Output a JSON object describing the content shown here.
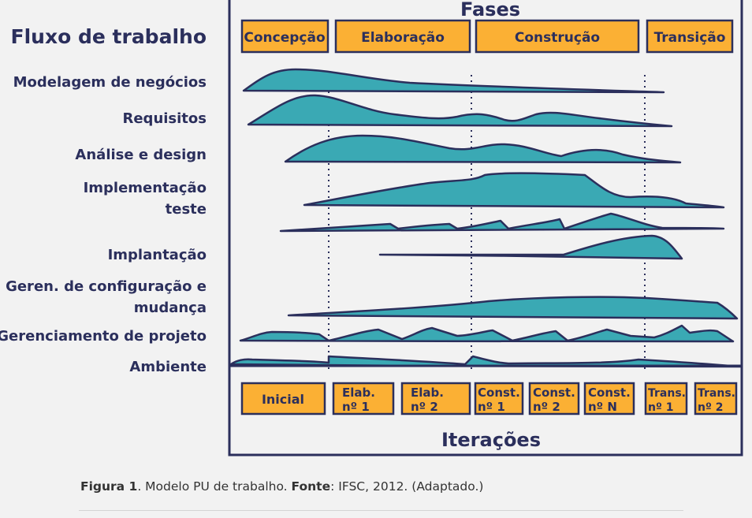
{
  "diagram": {
    "phases_title": "Fases",
    "workflow_title": "Fluxo de trabalho",
    "iterations_title": "Iterações",
    "phases": [
      "Concepção",
      "Elaboração",
      "Construção",
      "Transição"
    ],
    "workflows": [
      [
        "Modelagem de negócios"
      ],
      [
        "Requisitos"
      ],
      [
        "Análise e design"
      ],
      [
        "Implementação",
        "teste"
      ],
      [
        "Implantação"
      ],
      [
        "Geren. de configuração e",
        "mudança"
      ],
      [
        "Gerenciamento de projeto"
      ],
      [
        "Ambiente"
      ]
    ],
    "iterations": [
      [
        "Inicial"
      ],
      [
        "Elab.",
        "nº 1"
      ],
      [
        "Elab.",
        "nº 2"
      ],
      [
        "Const.",
        "nº 1"
      ],
      [
        "Const.",
        "nº 2"
      ],
      [
        "Const.",
        "nº N"
      ],
      [
        "Trans.",
        "nº 1"
      ],
      [
        "Trans.",
        "nº 2"
      ]
    ],
    "colors": {
      "box_fill": "#fbb034",
      "ink": "#2b2f5c",
      "hump_fill": "#3aa9b4",
      "background": "#f2f2f2"
    }
  },
  "caption": {
    "figure_label": "Figura 1",
    "figure_text": ". Modelo PU de trabalho. ",
    "source_label": "Fonte",
    "source_text": ": IFSC, 2012. (Adaptado.)"
  }
}
